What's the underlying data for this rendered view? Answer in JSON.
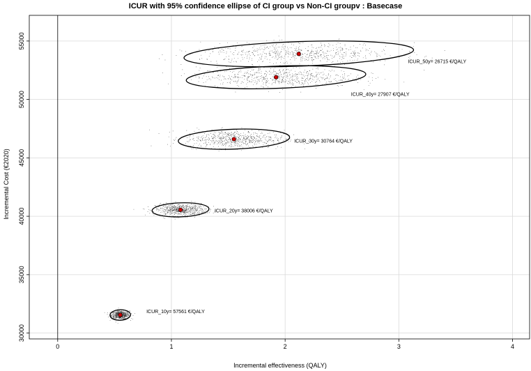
{
  "chart_data": {
    "type": "scatter",
    "title": "ICUR with 95% confidence ellipse of CI group vs Non-CI groupv : Basecase",
    "xlabel": "Incremental effectiveness (QALY)",
    "ylabel": "Incremental Cost (€2020)",
    "xlim": [
      -0.25,
      4.15
    ],
    "ylim": [
      29500,
      57200
    ],
    "x_ticks": [
      0,
      1,
      2,
      3,
      4
    ],
    "y_ticks": [
      30000,
      35000,
      40000,
      45000,
      50000,
      55000
    ],
    "grid": true,
    "colors": {
      "points": "#000000",
      "mean": "#cc0000",
      "ellipse": "#000000",
      "grid": "#d9d9d9"
    },
    "series": [
      {
        "label": "ICUR_10y= 57561 €/QALY",
        "label_pos": [
          0.78,
          31700
        ],
        "mean": [
          0.55,
          31550
        ],
        "ellipse": {
          "sx": 0.09,
          "sy": 450
        },
        "spread": {
          "sx": 0.04,
          "sy": 180
        }
      },
      {
        "label": "ICUR_20y= 38006 €/QALY",
        "label_pos": [
          1.38,
          40350
        ],
        "mean": [
          1.08,
          40550
        ],
        "ellipse": {
          "sx": 0.25,
          "sy": 600
        },
        "spread": {
          "sx": 0.11,
          "sy": 250
        }
      },
      {
        "label": "ICUR_30y= 30764 €/QALY",
        "label_pos": [
          2.08,
          46300
        ],
        "mean": [
          1.55,
          46600
        ],
        "ellipse": {
          "sx": 0.49,
          "sy": 850
        },
        "spread": {
          "sx": 0.22,
          "sy": 380
        }
      },
      {
        "label": "ICUR_40y= 27907 €/QALY",
        "label_pos": [
          2.58,
          50300
        ],
        "mean": [
          1.92,
          51900
        ],
        "ellipse": {
          "sx": 0.79,
          "sy": 950
        },
        "spread": {
          "sx": 0.34,
          "sy": 420
        }
      },
      {
        "label": "ICUR_50y= 26715 €/QALY",
        "label_pos": [
          3.08,
          53100
        ],
        "mean": [
          2.12,
          53900
        ],
        "ellipse": {
          "sx": 1.01,
          "sy": 1050
        },
        "spread": {
          "sx": 0.43,
          "sy": 460
        }
      }
    ]
  }
}
